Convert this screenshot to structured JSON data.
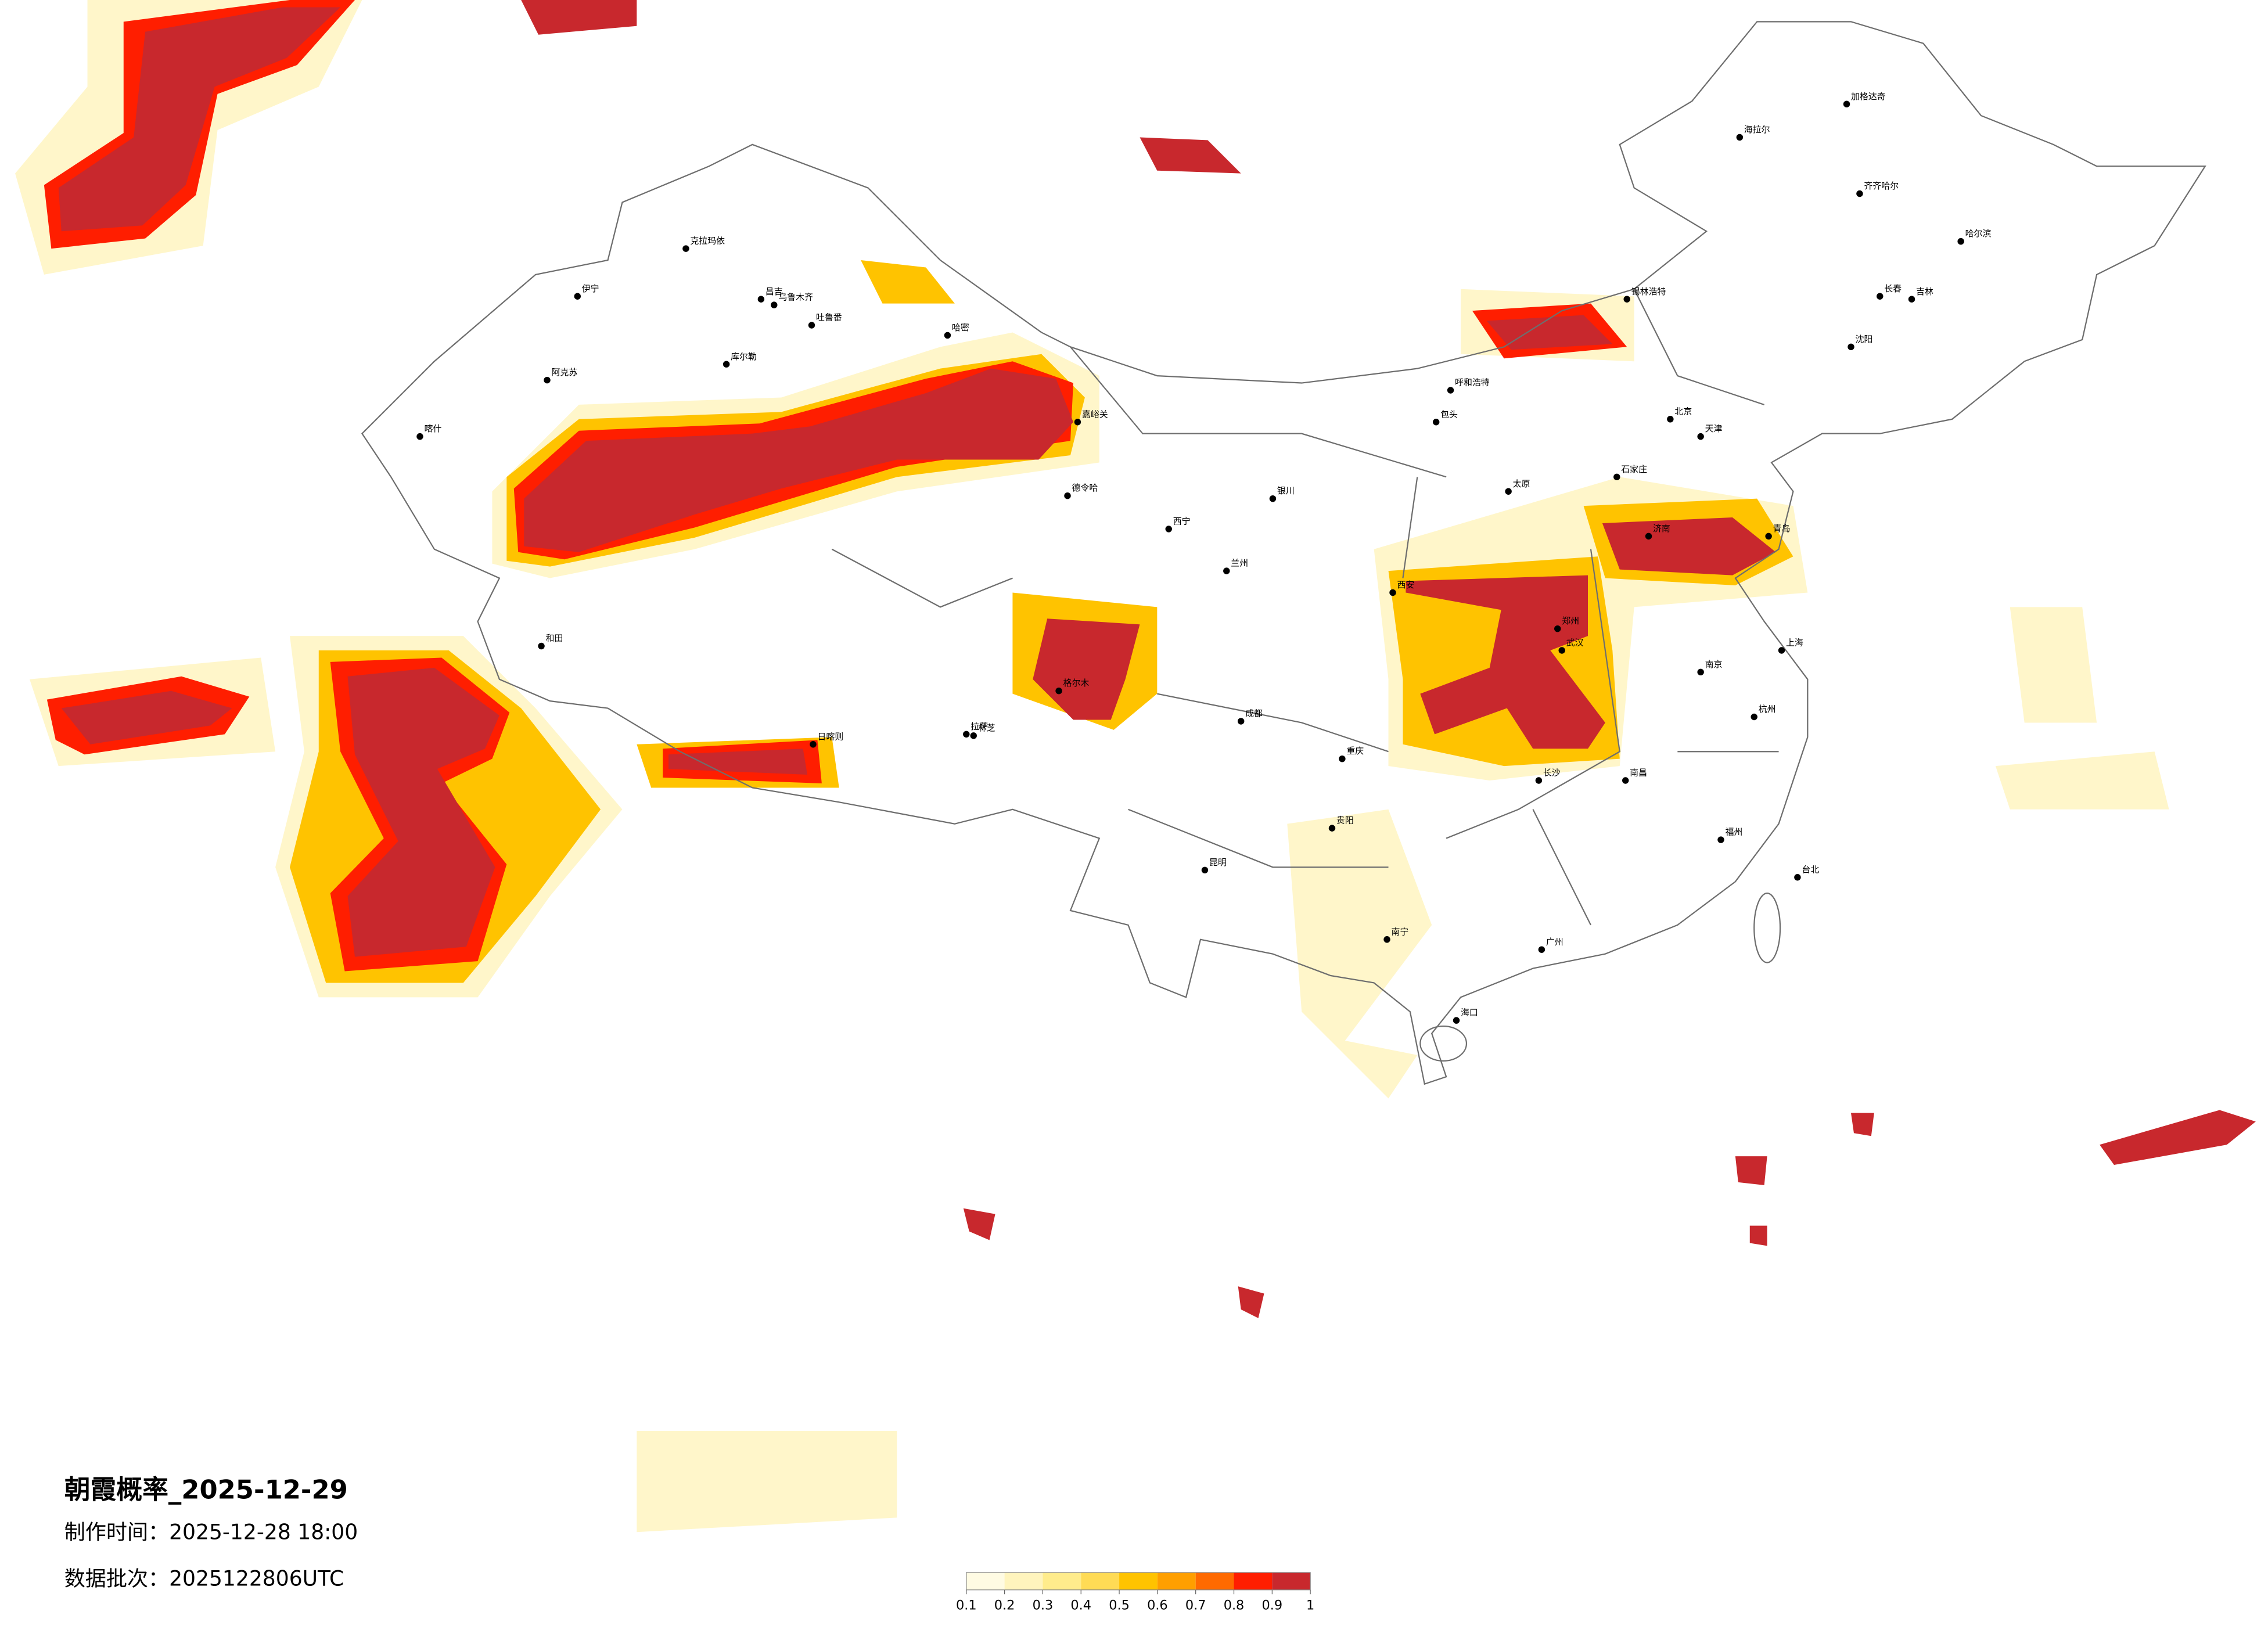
{
  "map": {
    "title": "朝霞概率_2025-12-29",
    "made_time": "制作时间：2025-12-28 18:00",
    "data_batch": "数据批次：2025122806UTC",
    "legend": {
      "ticks": [
        0.1,
        0.2,
        0.3,
        0.4,
        0.5,
        0.6,
        0.7,
        0.8,
        0.9,
        1
      ],
      "colors": [
        "#fffbe3",
        "#fff4bd",
        "#ffec8c",
        "#ffdb55",
        "#ffc300",
        "#ff9f00",
        "#ff6a00",
        "#ff1e00",
        "#c8282d"
      ]
    },
    "cities": [
      "克拉玛依",
      "伊宁",
      "昌吉",
      "乌鲁木齐",
      "吐鲁番",
      "库尔勒",
      "阿克苏",
      "喀什",
      "和田",
      "哈密",
      "嘉峪关",
      "德令哈",
      "格尔木",
      "西宁",
      "兰州",
      "银川",
      "呼和浩特",
      "包头",
      "锡林浩特",
      "海拉尔",
      "加格达奇",
      "齐齐哈尔",
      "哈尔滨",
      "长春",
      "吉林",
      "沈阳",
      "北京",
      "天津",
      "石家庄",
      "太原",
      "济南",
      "青岛",
      "郑州",
      "西安",
      "武汉",
      "南京",
      "上海",
      "杭州",
      "南昌",
      "长沙",
      "福州",
      "台北",
      "广州",
      "南宁",
      "海口",
      "贵阳",
      "昆明",
      "成都",
      "重庆",
      "拉萨",
      "日喀则",
      "林芝"
    ]
  }
}
